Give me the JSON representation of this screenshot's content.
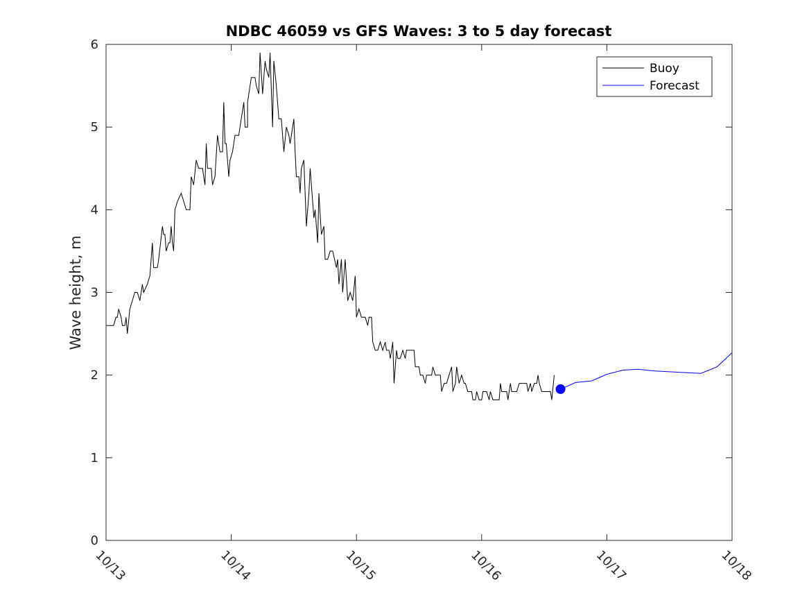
{
  "chart_data": {
    "type": "line",
    "title": "NDBC 46059 vs GFS Waves: 3 to 5 day forecast",
    "xlabel": "",
    "ylabel": "Wave height, m",
    "xlim": [
      0,
      5
    ],
    "ylim": [
      0,
      6
    ],
    "x_ticks": [
      0,
      1,
      2,
      3,
      4,
      5
    ],
    "x_tick_labels": [
      "10/13",
      "10/14",
      "10/15",
      "10/16",
      "10/17",
      "10/18"
    ],
    "y_ticks": [
      0,
      1,
      2,
      3,
      4,
      5,
      6
    ],
    "y_tick_labels": [
      "0",
      "1",
      "2",
      "3",
      "4",
      "5",
      "6"
    ],
    "x_units": "days since 10/13 00:00",
    "legend": {
      "position": "top-right",
      "entries": [
        "Buoy",
        "Forecast"
      ]
    },
    "series": [
      {
        "name": "Buoy",
        "color": "#000000",
        "points": [
          [
            0.0,
            2.6
          ],
          [
            0.06,
            2.6
          ],
          [
            0.08,
            2.7
          ],
          [
            0.09,
            2.7
          ],
          [
            0.1,
            2.8
          ],
          [
            0.12,
            2.7
          ],
          [
            0.13,
            2.6
          ],
          [
            0.15,
            2.6
          ],
          [
            0.16,
            2.7
          ],
          [
            0.17,
            2.5
          ],
          [
            0.19,
            2.8
          ],
          [
            0.21,
            2.9
          ],
          [
            0.23,
            3.0
          ],
          [
            0.25,
            3.0
          ],
          [
            0.27,
            2.9
          ],
          [
            0.29,
            3.1
          ],
          [
            0.3,
            3.0
          ],
          [
            0.33,
            3.1
          ],
          [
            0.35,
            3.2
          ],
          [
            0.37,
            3.6
          ],
          [
            0.38,
            3.3
          ],
          [
            0.41,
            3.3
          ],
          [
            0.42,
            3.4
          ],
          [
            0.45,
            3.8
          ],
          [
            0.46,
            3.7
          ],
          [
            0.47,
            3.7
          ],
          [
            0.48,
            3.5
          ],
          [
            0.5,
            3.6
          ],
          [
            0.51,
            3.6
          ],
          [
            0.52,
            3.8
          ],
          [
            0.53,
            3.6
          ],
          [
            0.54,
            3.5
          ],
          [
            0.55,
            4.0
          ],
          [
            0.57,
            4.1
          ],
          [
            0.6,
            4.2
          ],
          [
            0.62,
            4.1
          ],
          [
            0.64,
            4.0
          ],
          [
            0.67,
            4.0
          ],
          [
            0.68,
            4.4
          ],
          [
            0.7,
            4.3
          ],
          [
            0.72,
            4.6
          ],
          [
            0.74,
            4.5
          ],
          [
            0.77,
            4.5
          ],
          [
            0.79,
            4.3
          ],
          [
            0.8,
            4.8
          ],
          [
            0.81,
            4.5
          ],
          [
            0.84,
            4.5
          ],
          [
            0.85,
            4.3
          ],
          [
            0.87,
            4.4
          ],
          [
            0.89,
            4.9
          ],
          [
            0.9,
            4.8
          ],
          [
            0.91,
            4.7
          ],
          [
            0.93,
            4.7
          ],
          [
            0.94,
            5.3
          ],
          [
            0.95,
            4.8
          ],
          [
            0.96,
            4.8
          ],
          [
            0.98,
            4.4
          ],
          [
            0.99,
            4.6
          ],
          [
            1.01,
            4.7
          ],
          [
            1.03,
            4.9
          ],
          [
            1.06,
            4.9
          ],
          [
            1.08,
            5.1
          ],
          [
            1.09,
            5.2
          ],
          [
            1.1,
            5.3
          ],
          [
            1.11,
            5.0
          ],
          [
            1.13,
            5.0
          ],
          [
            1.13,
            5.3
          ],
          [
            1.14,
            5.4
          ],
          [
            1.16,
            5.6
          ],
          [
            1.19,
            5.6
          ],
          [
            1.2,
            5.5
          ],
          [
            1.22,
            5.4
          ],
          [
            1.23,
            5.9
          ],
          [
            1.25,
            5.4
          ],
          [
            1.27,
            5.8
          ],
          [
            1.28,
            5.7
          ],
          [
            1.3,
            5.6
          ],
          [
            1.31,
            5.9
          ],
          [
            1.33,
            5.0
          ],
          [
            1.34,
            5.8
          ],
          [
            1.36,
            5.5
          ],
          [
            1.38,
            5.1
          ],
          [
            1.4,
            5.1
          ],
          [
            1.42,
            4.7
          ],
          [
            1.44,
            5.0
          ],
          [
            1.46,
            4.9
          ],
          [
            1.47,
            4.8
          ],
          [
            1.5,
            5.1
          ],
          [
            1.51,
            4.7
          ],
          [
            1.52,
            4.4
          ],
          [
            1.54,
            4.4
          ],
          [
            1.55,
            4.2
          ],
          [
            1.56,
            4.5
          ],
          [
            1.58,
            4.6
          ],
          [
            1.6,
            3.8
          ],
          [
            1.62,
            4.2
          ],
          [
            1.63,
            4.5
          ],
          [
            1.66,
            3.9
          ],
          [
            1.67,
            4.0
          ],
          [
            1.69,
            3.6
          ],
          [
            1.7,
            4.2
          ],
          [
            1.72,
            3.7
          ],
          [
            1.74,
            3.8
          ],
          [
            1.75,
            3.4
          ],
          [
            1.77,
            3.4
          ],
          [
            1.79,
            3.5
          ],
          [
            1.81,
            3.5
          ],
          [
            1.84,
            3.3
          ],
          [
            1.85,
            3.4
          ],
          [
            1.86,
            3.1
          ],
          [
            1.88,
            3.4
          ],
          [
            1.89,
            3.0
          ],
          [
            1.91,
            3.4
          ],
          [
            1.93,
            2.9
          ],
          [
            1.95,
            3.0
          ],
          [
            1.97,
            2.9
          ],
          [
            1.99,
            3.2
          ],
          [
            2.0,
            2.7
          ],
          [
            2.02,
            2.8
          ],
          [
            2.04,
            2.7
          ],
          [
            2.07,
            2.7
          ],
          [
            2.09,
            2.6
          ],
          [
            2.1,
            2.7
          ],
          [
            2.12,
            2.7
          ],
          [
            2.13,
            2.4
          ],
          [
            2.15,
            2.3
          ],
          [
            2.17,
            2.3
          ],
          [
            2.19,
            2.4
          ],
          [
            2.21,
            2.3
          ],
          [
            2.23,
            2.4
          ],
          [
            2.24,
            2.3
          ],
          [
            2.26,
            2.3
          ],
          [
            2.27,
            2.2
          ],
          [
            2.29,
            2.4
          ],
          [
            2.3,
            1.9
          ],
          [
            2.32,
            2.3
          ],
          [
            2.33,
            2.2
          ],
          [
            2.35,
            2.2
          ],
          [
            2.37,
            2.3
          ],
          [
            2.39,
            2.2
          ],
          [
            2.4,
            2.3
          ],
          [
            2.46,
            2.3
          ],
          [
            2.47,
            2.1
          ],
          [
            2.5,
            2.1
          ],
          [
            2.51,
            2.0
          ],
          [
            2.53,
            2.0
          ],
          [
            2.55,
            1.9
          ],
          [
            2.56,
            2.0
          ],
          [
            2.6,
            2.0
          ],
          [
            2.61,
            2.1
          ],
          [
            2.63,
            2.0
          ],
          [
            2.67,
            2.0
          ],
          [
            2.68,
            1.8
          ],
          [
            2.7,
            1.9
          ],
          [
            2.72,
            1.9
          ],
          [
            2.74,
            2.0
          ],
          [
            2.76,
            2.1
          ],
          [
            2.77,
            1.8
          ],
          [
            2.79,
            1.9
          ],
          [
            2.8,
            2.1
          ],
          [
            2.82,
            1.9
          ],
          [
            2.84,
            2.0
          ],
          [
            2.86,
            1.9
          ],
          [
            2.87,
            1.9
          ],
          [
            2.89,
            1.8
          ],
          [
            2.92,
            1.8
          ],
          [
            2.93,
            1.7
          ],
          [
            2.95,
            1.7
          ],
          [
            2.96,
            1.8
          ],
          [
            2.98,
            1.7
          ],
          [
            3.0,
            1.7
          ],
          [
            3.01,
            1.8
          ],
          [
            3.04,
            1.8
          ],
          [
            3.06,
            1.7
          ],
          [
            3.07,
            1.8
          ],
          [
            3.09,
            1.7
          ],
          [
            3.14,
            1.7
          ],
          [
            3.15,
            1.9
          ],
          [
            3.16,
            1.8
          ],
          [
            3.2,
            1.8
          ],
          [
            3.21,
            1.7
          ],
          [
            3.23,
            1.9
          ],
          [
            3.24,
            1.8
          ],
          [
            3.28,
            1.8
          ],
          [
            3.3,
            1.9
          ],
          [
            3.36,
            1.9
          ],
          [
            3.37,
            1.8
          ],
          [
            3.39,
            1.9
          ],
          [
            3.4,
            1.8
          ],
          [
            3.42,
            1.9
          ],
          [
            3.44,
            1.9
          ],
          [
            3.45,
            2.0
          ],
          [
            3.46,
            1.9
          ],
          [
            3.48,
            1.8
          ],
          [
            3.55,
            1.8
          ],
          [
            3.56,
            1.7
          ],
          [
            3.58,
            2.0
          ]
        ]
      },
      {
        "name": "Forecast",
        "color": "#0000ff",
        "points": [
          [
            3.63,
            1.83
          ],
          [
            3.75,
            1.91
          ],
          [
            3.88,
            1.93
          ],
          [
            4.0,
            2.01
          ],
          [
            4.13,
            2.06
          ],
          [
            4.25,
            2.07
          ],
          [
            4.38,
            2.05
          ],
          [
            4.5,
            2.04
          ],
          [
            4.63,
            2.03
          ],
          [
            4.75,
            2.02
          ],
          [
            4.88,
            2.1
          ],
          [
            5.0,
            2.27
          ]
        ],
        "marker_point": [
          3.63,
          1.83
        ]
      }
    ]
  }
}
